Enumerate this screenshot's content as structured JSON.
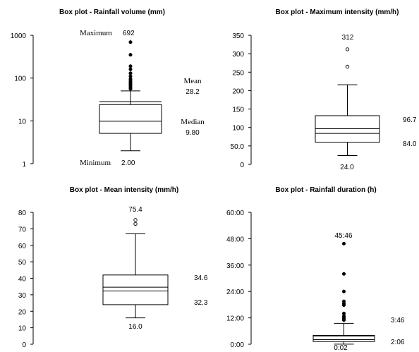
{
  "chart_data": [
    {
      "type": "box",
      "title": "Box plot - Rainfall volume (mm)",
      "scale": "log",
      "ylim": [
        1,
        1000
      ],
      "yticks": [
        1,
        10,
        100,
        1000
      ],
      "ytick_labels": [
        "1",
        "10",
        "100",
        "1000"
      ],
      "box": {
        "min": 2.0,
        "q1": 5.1,
        "median": 9.8,
        "mean": 28.2,
        "q3": 24.0,
        "whisker_high": 50.0,
        "max": 692
      },
      "outliers": [
        692,
        350,
        190,
        160,
        130,
        110,
        95,
        85,
        78,
        72,
        66,
        60,
        56
      ],
      "labels": {
        "maximum_word": "Maximum",
        "maximum_value": "692",
        "mean_word": "Mean",
        "mean_value": "28.2",
        "median_word": "Median",
        "median_value": "9.80",
        "minimum_word": "Minimum",
        "minimum_value": "2.00"
      }
    },
    {
      "type": "box",
      "title": "Box plot - Maximum intensity (mm/h)",
      "scale": "linear",
      "ylim": [
        0,
        350
      ],
      "yticks": [
        0,
        50,
        100,
        150,
        200,
        250,
        300,
        350
      ],
      "ytick_labels": [
        "0",
        "50.0",
        "100",
        "150",
        "200",
        "250",
        "300",
        "350"
      ],
      "box": {
        "min": 24.0,
        "q1": 60.0,
        "median": 84.0,
        "mean": 96.7,
        "q3": 132.0,
        "whisker_high": 216.0,
        "max": 312
      },
      "outliers": [
        312,
        265
      ],
      "outlier_style": "open",
      "labels": {
        "max_value": "312",
        "mean_value": "96.7",
        "median_value": "84.0",
        "min_value": "24.0"
      }
    },
    {
      "type": "box",
      "title": "Box plot - Mean intensity (mm/h)",
      "scale": "linear",
      "ylim": [
        0,
        80
      ],
      "yticks": [
        0,
        10,
        20,
        30,
        40,
        50,
        60,
        70,
        80
      ],
      "ytick_labels": [
        "0",
        "10",
        "20",
        "30",
        "40",
        "50",
        "60",
        "70",
        "80"
      ],
      "box": {
        "min": 16.0,
        "q1": 24.0,
        "median": 32.3,
        "mean": 34.6,
        "q3": 42.0,
        "whisker_high": 67.0,
        "max": 75.4
      },
      "outliers": [
        75.4,
        73.0
      ],
      "outlier_style": "open",
      "labels": {
        "max_value": "75.4",
        "mean_value": "34.6",
        "median_value": "32.3",
        "min_value": "16.0"
      }
    },
    {
      "type": "box",
      "title": "Box plot - Rainfall duration (h)",
      "scale": "linear",
      "unit": "hours (h:mm)",
      "ylim": [
        0,
        60
      ],
      "yticks": [
        0,
        12,
        24,
        36,
        48,
        60
      ],
      "ytick_labels": [
        "0:00",
        "12:00",
        "24:00",
        "36:00",
        "48:00",
        "60:00"
      ],
      "box": {
        "min": 0.033,
        "q1": 1.2,
        "median": 2.1,
        "mean": 3.767,
        "q3": 4.0,
        "whisker_high": 9.5,
        "max": 45.767
      },
      "outliers": [
        45.767,
        32.0,
        24.0,
        19.5,
        18.5,
        17.8,
        14.0,
        12.8,
        12.2,
        11.6,
        11.0
      ],
      "labels": {
        "max_value": "45:46",
        "mean_value": "3:46",
        "median_value": "2:06",
        "min_value": "0:02"
      }
    }
  ]
}
